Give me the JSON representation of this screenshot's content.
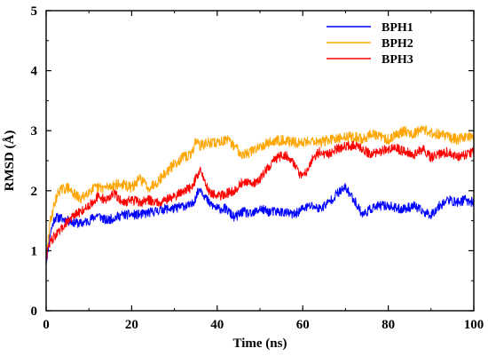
{
  "chart_data": {
    "type": "line",
    "title": "",
    "xlabel": "Time (ns)",
    "ylabel": "RMSD (Å)",
    "xlim": [
      0,
      100
    ],
    "ylim": [
      0,
      5
    ],
    "xticks": [
      0,
      20,
      40,
      60,
      80,
      100
    ],
    "yticks": [
      0,
      1,
      2,
      3,
      4,
      5
    ],
    "grid": false,
    "legend_position": "top-right",
    "noise_amplitude_units": "Å",
    "series": [
      {
        "name": "BPH1",
        "color": "#0000ff",
        "noise": 0.08,
        "x": [
          0,
          0.5,
          1,
          2,
          3,
          5,
          8,
          10,
          12,
          14,
          16,
          18,
          20,
          22,
          25,
          28,
          30,
          32,
          34,
          36,
          38,
          40,
          42,
          44,
          46,
          48,
          50,
          52,
          55,
          58,
          60,
          62,
          64,
          66,
          68,
          70,
          72,
          74,
          76,
          78,
          80,
          82,
          84,
          86,
          88,
          90,
          92,
          94,
          96,
          98,
          100
        ],
        "y": [
          0.8,
          1.05,
          1.3,
          1.55,
          1.55,
          1.5,
          1.45,
          1.5,
          1.6,
          1.5,
          1.55,
          1.6,
          1.6,
          1.6,
          1.65,
          1.7,
          1.7,
          1.75,
          1.75,
          2.05,
          1.8,
          1.7,
          1.7,
          1.55,
          1.65,
          1.6,
          1.7,
          1.65,
          1.65,
          1.6,
          1.7,
          1.75,
          1.7,
          1.8,
          1.95,
          2.05,
          1.85,
          1.6,
          1.7,
          1.75,
          1.75,
          1.7,
          1.7,
          1.75,
          1.65,
          1.6,
          1.75,
          1.85,
          1.8,
          1.85,
          1.8
        ]
      },
      {
        "name": "BPH2",
        "color": "#ffa500",
        "noise": 0.09,
        "x": [
          0,
          0.5,
          1,
          2,
          3,
          5,
          8,
          10,
          12,
          14,
          16,
          18,
          20,
          22,
          24,
          26,
          28,
          30,
          32,
          34,
          35,
          36,
          38,
          40,
          42,
          44,
          46,
          48,
          50,
          52,
          55,
          58,
          60,
          62,
          64,
          66,
          68,
          70,
          72,
          74,
          76,
          78,
          80,
          82,
          84,
          86,
          88,
          90,
          92,
          94,
          96,
          98,
          100
        ],
        "y": [
          0.8,
          1.2,
          1.5,
          1.8,
          2.0,
          2.05,
          1.85,
          2.0,
          2.05,
          2.05,
          2.1,
          2.1,
          2.05,
          2.2,
          2.05,
          2.15,
          2.3,
          2.45,
          2.55,
          2.6,
          2.85,
          2.75,
          2.8,
          2.8,
          2.85,
          2.75,
          2.6,
          2.65,
          2.75,
          2.8,
          2.85,
          2.8,
          2.8,
          2.85,
          2.8,
          2.85,
          2.85,
          2.9,
          2.9,
          2.85,
          2.95,
          2.9,
          2.85,
          2.95,
          3.0,
          2.95,
          3.05,
          2.95,
          2.95,
          2.9,
          2.85,
          2.9,
          2.9
        ]
      },
      {
        "name": "BPH3",
        "color": "#ff0000",
        "noise": 0.08,
        "x": [
          0,
          0.5,
          1,
          2,
          3,
          5,
          8,
          10,
          12,
          14,
          16,
          18,
          20,
          22,
          24,
          26,
          28,
          30,
          32,
          34,
          36,
          38,
          40,
          42,
          44,
          46,
          48,
          50,
          52,
          54,
          56,
          58,
          60,
          62,
          64,
          66,
          68,
          70,
          72,
          74,
          76,
          78,
          80,
          82,
          84,
          86,
          88,
          90,
          92,
          94,
          96,
          98,
          100
        ],
        "y": [
          0.9,
          1.05,
          1.15,
          1.25,
          1.3,
          1.5,
          1.65,
          1.75,
          1.9,
          1.85,
          1.95,
          1.8,
          1.85,
          1.8,
          1.85,
          1.8,
          1.85,
          1.9,
          2.0,
          2.05,
          2.35,
          2.0,
          1.9,
          1.95,
          2.0,
          2.15,
          2.1,
          2.2,
          2.4,
          2.55,
          2.6,
          2.45,
          2.2,
          2.5,
          2.65,
          2.6,
          2.7,
          2.75,
          2.75,
          2.7,
          2.6,
          2.65,
          2.7,
          2.7,
          2.65,
          2.6,
          2.7,
          2.55,
          2.6,
          2.65,
          2.55,
          2.6,
          2.65
        ]
      }
    ]
  }
}
